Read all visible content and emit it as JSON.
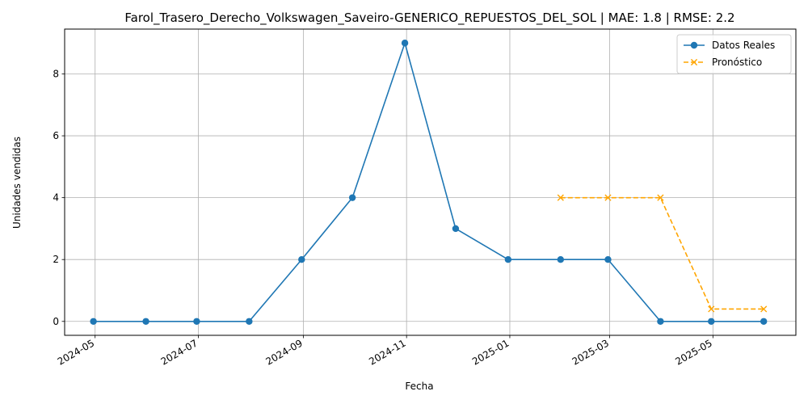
{
  "chart_data": {
    "type": "line",
    "title": "Farol_Trasero_Derecho_Volkswagen_Saveiro-GENERICO_REPUESTOS_DEL_SOL | MAE: 1.8 | RMSE: 2.2",
    "xlabel": "Fecha",
    "ylabel": "Unidades vendidas",
    "grid": true,
    "legend_position": "top-right",
    "xlim": [
      "2024-04-13",
      "2025-06-19"
    ],
    "ylim": [
      -0.45,
      9.45
    ],
    "x_ticks": [
      "2024-05",
      "2024-07",
      "2024-09",
      "2024-11",
      "2025-01",
      "2025-03",
      "2025-05"
    ],
    "x_tick_dates": [
      "2024-05-01",
      "2024-07-01",
      "2024-09-01",
      "2024-11-01",
      "2025-01-01",
      "2025-03-01",
      "2025-05-01"
    ],
    "y_ticks": [
      0,
      2,
      4,
      6,
      8
    ],
    "series": [
      {
        "name": "Datos Reales",
        "color": "#1f77b4",
        "style": "solid",
        "marker": "circle",
        "x": [
          "2024-04-30",
          "2024-05-31",
          "2024-06-30",
          "2024-07-31",
          "2024-08-31",
          "2024-09-30",
          "2024-10-31",
          "2024-11-30",
          "2024-12-31",
          "2025-01-31",
          "2025-02-28",
          "2025-03-31",
          "2025-04-30",
          "2025-05-31"
        ],
        "values": [
          0,
          0,
          0,
          0,
          2,
          4,
          9,
          3,
          2,
          2,
          2,
          0,
          0,
          0
        ]
      },
      {
        "name": "Pronóstico",
        "color": "#ffa500",
        "style": "dashed",
        "marker": "x",
        "x": [
          "2025-01-31",
          "2025-02-28",
          "2025-03-31",
          "2025-04-30",
          "2025-05-31"
        ],
        "values": [
          4,
          4,
          4,
          0.4,
          0.4
        ]
      }
    ]
  }
}
